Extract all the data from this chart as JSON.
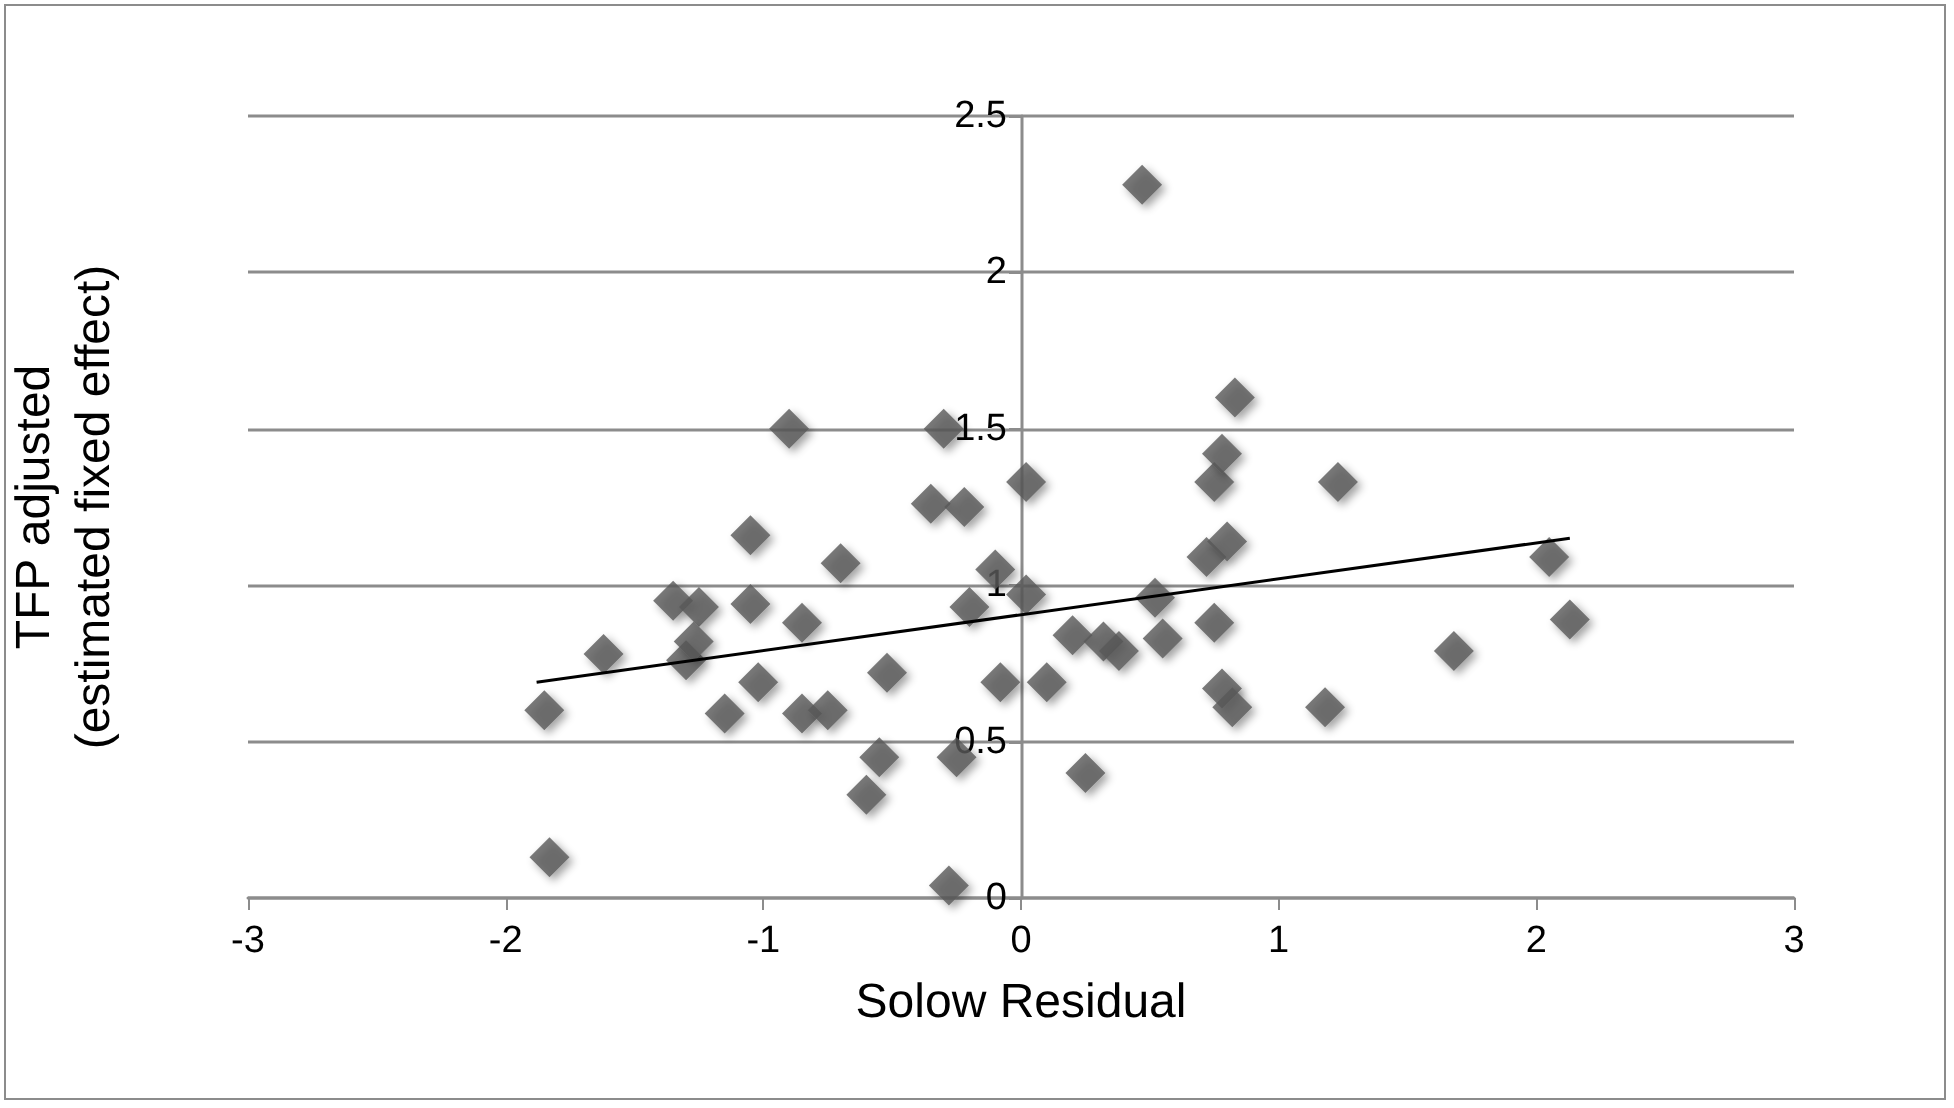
{
  "chart_data": {
    "type": "scatter",
    "xlabel": "Solow Residual",
    "ylabel": "TFP adjusted\n(estimated fixed effect)",
    "xlim": [
      -3,
      3
    ],
    "xticks": [
      -3,
      -2,
      -1,
      0,
      1,
      2,
      3
    ],
    "ylim": [
      0,
      2.5
    ],
    "yticks": [
      0,
      0.5,
      1,
      1.5,
      2,
      2.5
    ],
    "grid": "y",
    "marker": "diamond",
    "series": [
      {
        "color": "#595959",
        "x": [
          -1.83,
          -1.85,
          -1.62,
          -1.35,
          -1.25,
          -1.3,
          -1.27,
          -1.15,
          -1.05,
          -1.05,
          -1.02,
          -0.9,
          -0.85,
          -0.85,
          -0.75,
          -0.7,
          -0.6,
          -0.55,
          -0.52,
          -0.35,
          -0.3,
          -0.28,
          -0.25,
          -0.22,
          -0.2,
          -0.1,
          -0.08,
          0.02,
          0.02,
          0.1,
          0.2,
          0.25,
          0.32,
          0.38,
          0.47,
          0.52,
          0.55,
          0.72,
          0.75,
          0.75,
          0.78,
          0.78,
          0.8,
          0.82,
          0.83,
          1.18,
          1.23,
          1.68,
          2.05,
          2.13
        ],
        "values": [
          0.13,
          0.6,
          0.78,
          0.95,
          0.93,
          0.76,
          0.82,
          0.59,
          1.16,
          0.94,
          0.69,
          1.5,
          0.88,
          0.59,
          0.6,
          1.07,
          0.33,
          0.45,
          0.72,
          1.26,
          1.5,
          0.04,
          0.45,
          1.25,
          0.93,
          1.05,
          0.69,
          1.33,
          0.97,
          0.69,
          0.84,
          0.4,
          0.82,
          0.79,
          2.28,
          0.96,
          0.83,
          1.09,
          0.88,
          1.33,
          1.42,
          0.67,
          1.14,
          0.61,
          1.6,
          0.61,
          1.33,
          0.79,
          1.09,
          0.89
        ]
      },
      {
        "type": "line",
        "color": "#000000",
        "marker": "none",
        "x": [
          -1.88,
          2.13
        ],
        "values": [
          0.69,
          1.15
        ]
      }
    ]
  }
}
